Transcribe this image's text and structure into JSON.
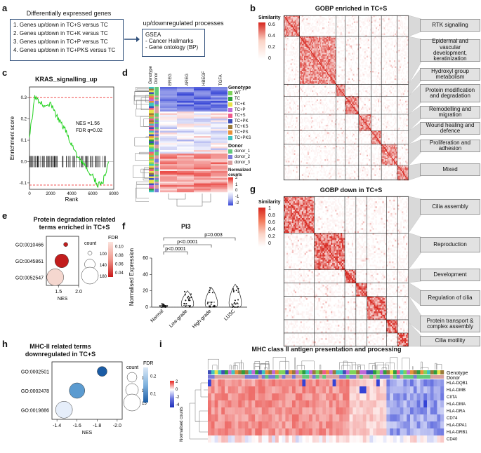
{
  "panels": {
    "a": "a",
    "b": "b",
    "c": "c",
    "d": "d",
    "e": "e",
    "f": "f",
    "g": "g",
    "h": "h",
    "i": "i"
  },
  "a": {
    "left_title": "Differentially expressed genes",
    "comparisons": [
      "1. Genes up/down in TC+S versus TC",
      "2. Genes up/down in TC+K versus TC",
      "3. Genes up/down in TC+P versus TC",
      "4. Genes up/down in TC+PKS versus TC"
    ],
    "right_title": "up/downregulated processes",
    "right_head": "GSEA",
    "right_items": [
      "- Cancer Hallmarks",
      "- Gene ontology (BP)"
    ]
  },
  "b": {
    "title": "GOBP enriched in TC+S",
    "scale_label": "Similarity",
    "scale_ticks": [
      "0.6",
      "0.4",
      "0.2",
      "0"
    ],
    "clusters": [
      "RTK signalling",
      "Epidermal and vascular development, keratinization",
      "Hydroxyl group metabolism",
      "Protein modification and degradation",
      "Remodelling and migration",
      "Wound healing and defence",
      "Proliferation and adhesion",
      "Mixed"
    ]
  },
  "c": {
    "title": "KRAS_signalling_up",
    "ylabel": "Enrichment score",
    "xlabel": "Rank",
    "nes": "NES =1.56",
    "fdr": "FDR q=0.02",
    "yticks": [
      "0.3",
      "0.2",
      "0.1",
      "0.0",
      "-0.1"
    ],
    "xticks": [
      "0",
      "2000",
      "4000",
      "6000",
      "8000"
    ]
  },
  "d": {
    "col_labels": [
      "Genotype",
      "Donor",
      "EREG",
      "AREG",
      "HBEGF",
      "TGFA"
    ],
    "genotype_title": "Genotype",
    "genotypes": [
      {
        "name": "WT",
        "color": "#7fd45a"
      },
      {
        "name": "TC",
        "color": "#2e9e3e"
      },
      {
        "name": "TC+K",
        "color": "#e8e24a"
      },
      {
        "name": "TC+P",
        "color": "#c06ad8"
      },
      {
        "name": "TC+S",
        "color": "#f05a8a"
      },
      {
        "name": "TC+PK",
        "color": "#3f4fb8"
      },
      {
        "name": "TC+KS",
        "color": "#9a7a3a"
      },
      {
        "name": "TC+PS",
        "color": "#e8913a"
      },
      {
        "name": "TC+PKS",
        "color": "#3fc4c0"
      }
    ],
    "donor_title": "Donor",
    "donors": [
      {
        "name": "donor_1",
        "color": "#62c97a"
      },
      {
        "name": "donor_2",
        "color": "#7a7ad8"
      },
      {
        "name": "donor_3",
        "color": "#d8a0a0"
      }
    ],
    "counts_title": "Normalized counts",
    "counts_ticks": [
      "2",
      "1",
      "0",
      "-1",
      "-2"
    ]
  },
  "e": {
    "title_line1": "Protein degradation related",
    "title_line2": "terms enriched in TC+S",
    "xlabel": "NES",
    "count_title": "count",
    "count_values": [
      "100",
      "140",
      "180"
    ],
    "fdr_title": "FDR",
    "fdr_ticks": [
      "0.10",
      "0.08",
      "0.06",
      "0.04"
    ]
  },
  "f": {
    "title": "PI3",
    "ylabel": "Normalised Expression",
    "yticks": [
      "60",
      "40",
      "20",
      "0"
    ],
    "groups": [
      "Normal",
      "Low-grade",
      "High-grade",
      "LUSC"
    ],
    "pvals": [
      "p=0.003",
      "p<0.0001",
      "p<0.0001"
    ]
  },
  "g": {
    "title": "GOBP down in TC+S",
    "scale_label": "Similarity",
    "scale_ticks": [
      "1",
      "0.8",
      "0.6",
      "0.4",
      "0.2",
      "0"
    ],
    "clusters": [
      "Cilia assembly",
      "Reproduction",
      "Development",
      "Regulation of cilia",
      "Protein transport & complex assembly",
      "Cilia motility"
    ]
  },
  "h": {
    "title_line1": "MHC-II related terms",
    "title_line2": "downregulated in TC+S",
    "xlabel": "NES",
    "count_title": "count",
    "count_values": [
      "10",
      "12",
      "15"
    ],
    "fdr_title": "FDR",
    "fdr_ticks": [
      "0.2",
      "0.1"
    ]
  },
  "i": {
    "title": "MHC class II antigen presentation and processing",
    "side_labels": [
      "Genotype",
      "Donor"
    ],
    "ylabel": "Normalised counts",
    "scale_ticks": [
      "2",
      "0",
      "-2",
      "-4"
    ],
    "genes": [
      "HLA-DQB1",
      "HLA-DMB",
      "CIITA",
      "HLA-DMA",
      "HLA-DRA",
      "CD74",
      "HLA-DPA1",
      "HLA-DRB1",
      "CD40"
    ]
  },
  "chart_data": [
    {
      "type": "line",
      "id": "c",
      "title": "KRAS_signalling_up",
      "xlabel": "Rank",
      "ylabel": "Enrichment score",
      "x": [
        0,
        500,
        1000,
        1500,
        2000,
        2500,
        3000,
        3500,
        4000,
        4500,
        5000,
        5500,
        6000,
        6500,
        7000,
        7500
      ],
      "series": [
        {
          "name": "Enrichment score",
          "values": [
            0.12,
            0.3,
            0.28,
            0.26,
            0.27,
            0.22,
            0.18,
            0.14,
            0.08,
            0.03,
            0.0,
            -0.04,
            -0.07,
            -0.11,
            -0.09,
            0.0
          ]
        }
      ],
      "ylim": [
        -0.13,
        0.35
      ],
      "xlim": [
        0,
        8000
      ]
    },
    {
      "type": "scatter",
      "id": "e",
      "title": "Protein degradation related terms enriched in TC+S",
      "xlabel": "NES",
      "categories": [
        "GO:0010466",
        "GO:0045861",
        "GO:0052547"
      ],
      "x": [
        1.68,
        1.58,
        1.42
      ],
      "size": [
        100,
        160,
        180
      ],
      "fdr": [
        0.03,
        0.04,
        0.09
      ],
      "xlim": [
        1.2,
        2.0
      ]
    },
    {
      "type": "scatter",
      "id": "h",
      "title": "MHC-II related terms downregulated in TC+S",
      "xlabel": "NES",
      "categories": [
        "GO:0002501",
        "GO:0002478",
        "GO:0019886"
      ],
      "x": [
        -1.85,
        -1.6,
        -1.47
      ],
      "size": [
        10,
        14,
        15
      ],
      "fdr": [
        0.03,
        0.12,
        0.22
      ],
      "xlim": [
        -1.35,
        -2.05
      ]
    },
    {
      "type": "scatter",
      "id": "f",
      "title": "PI3",
      "ylabel": "Normalised Expression",
      "categories": [
        "Normal",
        "Low-grade",
        "High-grade",
        "LUSC"
      ],
      "medians": [
        1,
        2,
        6,
        4
      ],
      "maxima": [
        4,
        20,
        24,
        28
      ],
      "ylim": [
        0,
        60
      ]
    }
  ]
}
